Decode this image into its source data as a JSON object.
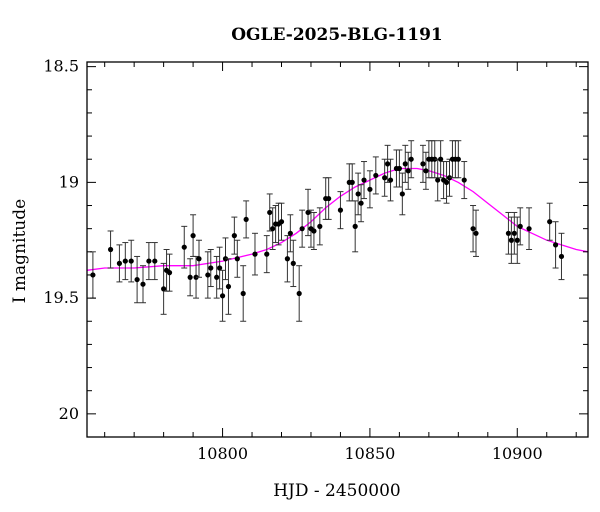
{
  "chart_data": {
    "type": "scatter",
    "title": "OGLE-2025-BLG-1191",
    "xlabel": "HJD - 2450000",
    "ylabel": "I magnitude",
    "xlim": [
      10754,
      10924
    ],
    "ylim": [
      20.1,
      18.48
    ],
    "y_inverted": true,
    "x_ticks": [
      10800,
      10850,
      10900
    ],
    "y_ticks": [
      18.5,
      19,
      19.5,
      20
    ],
    "x_tick_labels": [
      "10800",
      "10850",
      "10900"
    ],
    "y_tick_labels": [
      "18.5",
      "19",
      "19.5",
      "20"
    ],
    "grid": false,
    "legend": "none",
    "colors": {
      "points": "#000000",
      "errorbars": "#333333",
      "model": "#ff00ff"
    },
    "series": [
      {
        "kind": "points",
        "x": [
          10756,
          10762,
          10765,
          10767,
          10769,
          10771,
          10773,
          10775,
          10777,
          10780,
          10781,
          10782,
          10787,
          10789,
          10790,
          10791,
          10792,
          10795,
          10796,
          10798,
          10799,
          10800,
          10801,
          10802,
          10804,
          10805,
          10807,
          10808,
          10811,
          10815,
          10816,
          10817,
          10818,
          10819,
          10820,
          10822,
          10823,
          10824,
          10826,
          10827,
          10829,
          10830,
          10831,
          10833,
          10835,
          10836,
          10840,
          10843,
          10844,
          10845,
          10846,
          10847,
          10848,
          10850,
          10852,
          10855,
          10856,
          10857,
          10859,
          10860,
          10861,
          10862,
          10863,
          10864,
          10868,
          10869,
          10870,
          10871,
          10872,
          10873,
          10874,
          10875,
          10876,
          10877,
          10878,
          10879,
          10880,
          10882,
          10885,
          10886,
          10897,
          10898,
          10899,
          10900,
          10901,
          10904,
          10911,
          10913,
          10915
        ],
        "y": [
          19.4,
          19.29,
          19.35,
          19.34,
          19.34,
          19.42,
          19.44,
          19.34,
          19.34,
          19.46,
          19.38,
          19.39,
          19.28,
          19.41,
          19.23,
          19.41,
          19.33,
          19.4,
          19.37,
          19.41,
          19.37,
          19.49,
          19.33,
          19.45,
          19.23,
          19.33,
          19.48,
          19.16,
          19.31,
          19.31,
          19.13,
          19.2,
          19.18,
          19.18,
          19.17,
          19.33,
          19.22,
          19.35,
          19.48,
          19.2,
          19.13,
          19.2,
          19.21,
          19.19,
          19.07,
          19.07,
          19.12,
          19.0,
          19.0,
          19.19,
          19.05,
          19.09,
          18.99,
          19.03,
          18.97,
          18.98,
          18.92,
          18.99,
          18.94,
          18.94,
          19.05,
          18.92,
          18.95,
          18.9,
          18.92,
          18.95,
          18.9,
          18.9,
          18.9,
          18.99,
          18.9,
          18.99,
          19.0,
          18.98,
          18.9,
          18.9,
          18.9,
          18.99,
          19.2,
          19.22,
          19.22,
          19.25,
          19.22,
          19.25,
          19.19,
          19.2,
          19.17,
          19.27,
          19.32
        ],
        "err": [
          0.1,
          0.08,
          0.08,
          0.08,
          0.09,
          0.1,
          0.08,
          0.08,
          0.08,
          0.11,
          0.09,
          0.08,
          0.09,
          0.08,
          0.09,
          0.09,
          0.08,
          0.1,
          0.08,
          0.09,
          0.09,
          0.11,
          0.09,
          0.12,
          0.08,
          0.08,
          0.12,
          0.08,
          0.09,
          0.08,
          0.08,
          0.09,
          0.08,
          0.09,
          0.08,
          0.1,
          0.08,
          0.1,
          0.12,
          0.08,
          0.1,
          0.08,
          0.08,
          0.08,
          0.09,
          0.09,
          0.08,
          0.08,
          0.08,
          0.11,
          0.09,
          0.08,
          0.08,
          0.08,
          0.08,
          0.08,
          0.08,
          0.09,
          0.08,
          0.08,
          0.09,
          0.08,
          0.08,
          0.08,
          0.08,
          0.08,
          0.08,
          0.08,
          0.08,
          0.09,
          0.08,
          0.08,
          0.09,
          0.08,
          0.08,
          0.08,
          0.08,
          0.08,
          0.1,
          0.1,
          0.09,
          0.1,
          0.09,
          0.1,
          0.08,
          0.09,
          0.08,
          0.1,
          0.1
        ]
      },
      {
        "kind": "model",
        "x": [
          10754,
          10760,
          10770,
          10780,
          10790,
          10800,
          10810,
          10815,
          10820,
          10825,
          10830,
          10835,
          10840,
          10845,
          10850,
          10855,
          10860,
          10863,
          10866,
          10870,
          10875,
          10880,
          10885,
          10890,
          10895,
          10900,
          10905,
          10910,
          10915,
          10920,
          10924
        ],
        "y": [
          19.38,
          19.37,
          19.37,
          19.36,
          19.36,
          19.34,
          19.31,
          19.29,
          19.26,
          19.22,
          19.17,
          19.11,
          19.06,
          19.02,
          18.99,
          18.96,
          18.94,
          18.94,
          18.94,
          18.95,
          18.97,
          19.0,
          19.04,
          19.09,
          19.14,
          19.19,
          19.22,
          19.25,
          19.27,
          19.29,
          19.3
        ]
      }
    ]
  }
}
